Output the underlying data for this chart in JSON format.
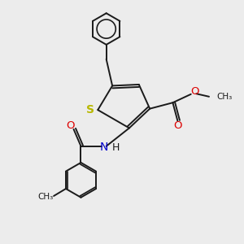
{
  "background_color": "#ececec",
  "bond_color": "#1a1a1a",
  "S_color": "#b8b800",
  "N_color": "#0000cc",
  "O_color": "#dd0000",
  "line_width": 1.4,
  "fig_size": [
    3.0,
    3.0
  ],
  "dpi": 100,
  "xlim": [
    0,
    10
  ],
  "ylim": [
    0,
    10
  ]
}
